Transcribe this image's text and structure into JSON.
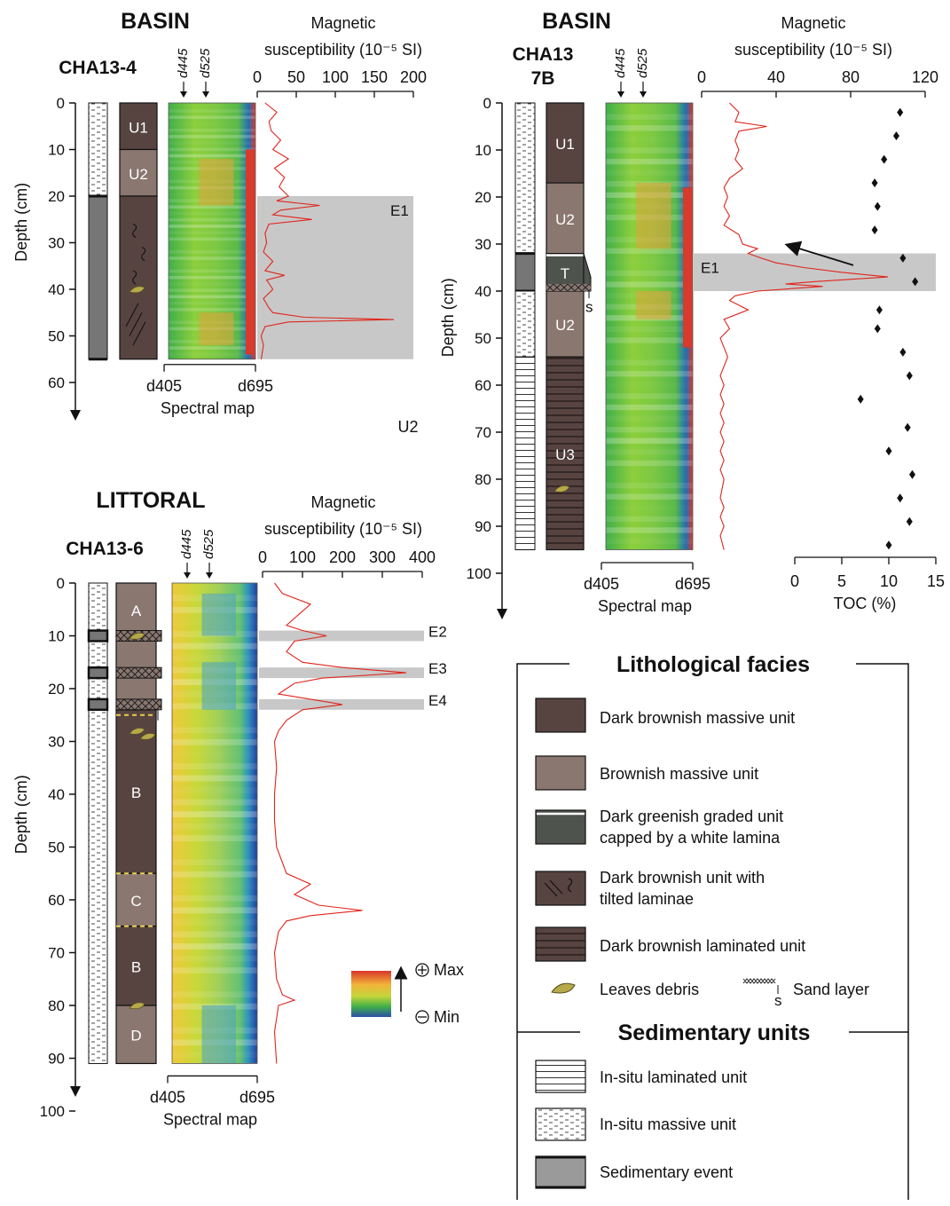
{
  "cores": [
    {
      "id": "cha13-4",
      "environment": "BASIN",
      "name": [
        "CHA13-4"
      ],
      "depth_label": "Depth (cm)",
      "depth_ticks": [
        0,
        10,
        20,
        30,
        40,
        50,
        60
      ],
      "core_length_cm": 55,
      "units": [
        {
          "label": "U1",
          "top": 0,
          "bottom": 10,
          "facies": "dark-massive"
        },
        {
          "label": "U2",
          "top": 10,
          "bottom": 20,
          "facies": "brownish-massive"
        },
        {
          "label": "",
          "top": 20,
          "bottom": 55,
          "facies": "tilted"
        }
      ],
      "sed_units": [
        {
          "top": 0,
          "bottom": 20,
          "type": "massive"
        },
        {
          "top": 20,
          "bottom": 55,
          "type": "event"
        }
      ],
      "wavelength_labels": [
        "d445",
        "d525"
      ],
      "spectral_axis": [
        "d405",
        "d695"
      ],
      "spectral_label": "Spectral map",
      "ms_title": [
        "Magnetic",
        "susceptibility (10⁻⁵ SI)"
      ],
      "ms_ticks": [
        0,
        50,
        100,
        150,
        200
      ],
      "ms_max": 200,
      "events": [
        {
          "label": "E1",
          "top": 20,
          "bottom": 55
        }
      ],
      "stray_label": "U2",
      "ms_profile": [
        [
          0,
          10
        ],
        [
          2,
          25
        ],
        [
          4,
          15
        ],
        [
          6,
          18
        ],
        [
          8,
          30
        ],
        [
          10,
          20
        ],
        [
          12,
          40
        ],
        [
          14,
          22
        ],
        [
          16,
          35
        ],
        [
          18,
          28
        ],
        [
          20,
          40
        ],
        [
          21,
          25
        ],
        [
          22,
          80
        ],
        [
          23,
          30
        ],
        [
          24,
          20
        ],
        [
          25,
          70
        ],
        [
          26,
          15
        ],
        [
          28,
          10
        ],
        [
          30,
          12
        ],
        [
          32,
          8
        ],
        [
          34,
          20
        ],
        [
          36,
          10
        ],
        [
          37,
          35
        ],
        [
          38,
          12
        ],
        [
          40,
          20
        ],
        [
          42,
          8
        ],
        [
          44,
          15
        ],
        [
          45,
          20
        ],
        [
          46,
          60
        ],
        [
          46.5,
          175
        ],
        [
          47,
          40
        ],
        [
          48,
          10
        ],
        [
          50,
          5
        ],
        [
          52,
          8
        ],
        [
          55,
          5
        ]
      ]
    },
    {
      "id": "cha13-7b",
      "environment": "BASIN",
      "name": [
        "CHA13",
        "7B"
      ],
      "depth_label": "Depth (cm)",
      "depth_ticks": [
        0,
        10,
        20,
        30,
        40,
        50,
        60,
        70,
        80,
        90,
        100
      ],
      "core_length_cm": 95,
      "units": [
        {
          "label": "U1",
          "top": 0,
          "bottom": 17,
          "facies": "dark-massive"
        },
        {
          "label": "U2",
          "top": 17,
          "bottom": 32,
          "facies": "brownish-massive"
        },
        {
          "label": "T",
          "top": 32,
          "bottom": 40,
          "facies": "graded"
        },
        {
          "label": "U2",
          "top": 40,
          "bottom": 54,
          "facies": "brownish-massive"
        },
        {
          "label": "U3",
          "top": 54,
          "bottom": 95,
          "facies": "laminated"
        }
      ],
      "sed_units": [
        {
          "top": 0,
          "bottom": 32,
          "type": "massive"
        },
        {
          "top": 32,
          "bottom": 40,
          "type": "event"
        },
        {
          "top": 40,
          "bottom": 54,
          "type": "massive"
        },
        {
          "top": 54,
          "bottom": 95,
          "type": "laminated"
        }
      ],
      "wavelength_labels": [
        "d445",
        "d525"
      ],
      "spectral_axis": [
        "d405",
        "d695"
      ],
      "spectral_label": "Spectral map",
      "ms_title": [
        "Magnetic",
        "susceptibility (10⁻⁵ SI)"
      ],
      "ms_ticks": [
        0,
        40,
        80,
        120
      ],
      "ms_max": 120,
      "events": [
        {
          "label": "E1",
          "top": 32,
          "bottom": 40
        }
      ],
      "toc_axis": {
        "label": "TOC (%)",
        "ticks": [
          0,
          5,
          10,
          15
        ],
        "max": 15
      },
      "toc_points": [
        [
          2,
          11.2
        ],
        [
          7,
          10.8
        ],
        [
          12,
          9.5
        ],
        [
          17,
          8.5
        ],
        [
          22,
          8.8
        ],
        [
          27,
          8.5
        ],
        [
          33,
          11.5
        ],
        [
          38,
          12.8
        ],
        [
          44,
          9
        ],
        [
          48,
          8.8
        ],
        [
          53,
          11.5
        ],
        [
          58,
          12.2
        ],
        [
          63,
          7
        ],
        [
          69,
          12
        ],
        [
          74,
          10
        ],
        [
          79,
          12.5
        ],
        [
          84,
          11.2
        ],
        [
          89,
          12.2
        ],
        [
          94,
          10
        ]
      ],
      "ms_profile": [
        [
          0,
          15
        ],
        [
          2,
          20
        ],
        [
          4,
          18
        ],
        [
          5,
          35
        ],
        [
          6,
          20
        ],
        [
          8,
          18
        ],
        [
          10,
          20
        ],
        [
          12,
          18
        ],
        [
          14,
          22
        ],
        [
          16,
          15
        ],
        [
          18,
          12
        ],
        [
          20,
          14
        ],
        [
          22,
          12
        ],
        [
          24,
          15
        ],
        [
          26,
          12
        ],
        [
          28,
          20
        ],
        [
          30,
          22
        ],
        [
          31,
          30
        ],
        [
          32,
          25
        ],
        [
          33,
          32
        ],
        [
          34,
          40
        ],
        [
          35,
          55
        ],
        [
          36,
          75
        ],
        [
          37,
          100
        ],
        [
          38,
          60
        ],
        [
          38.5,
          45
        ],
        [
          39,
          65
        ],
        [
          40,
          30
        ],
        [
          41,
          18
        ],
        [
          42,
          15
        ],
        [
          44,
          25
        ],
        [
          46,
          12
        ],
        [
          48,
          15
        ],
        [
          50,
          10
        ],
        [
          52,
          12
        ],
        [
          54,
          14
        ],
        [
          56,
          12
        ],
        [
          58,
          10
        ],
        [
          60,
          12
        ],
        [
          62,
          10
        ],
        [
          64,
          12
        ],
        [
          66,
          10
        ],
        [
          68,
          12
        ],
        [
          70,
          10
        ],
        [
          72,
          12
        ],
        [
          74,
          10
        ],
        [
          76,
          12
        ],
        [
          78,
          10
        ],
        [
          80,
          12
        ],
        [
          82,
          11
        ],
        [
          84,
          10
        ],
        [
          86,
          12
        ],
        [
          88,
          10
        ],
        [
          90,
          12
        ],
        [
          92,
          10
        ],
        [
          95,
          12
        ]
      ]
    },
    {
      "id": "cha13-6",
      "environment": "LITTORAL",
      "name": [
        "CHA13-6"
      ],
      "depth_label": "Depth (cm)",
      "depth_ticks": [
        0,
        10,
        20,
        30,
        40,
        50,
        60,
        70,
        80,
        90,
        100
      ],
      "core_length_cm": 91,
      "units": [
        {
          "label": "A",
          "top": 0,
          "bottom": 10,
          "facies": "brownish-massive"
        },
        {
          "label": "",
          "top": 10,
          "bottom": 24,
          "facies": "brownish-massive"
        },
        {
          "label": "B",
          "top": 24,
          "bottom": 55,
          "facies": "dark-massive"
        },
        {
          "label": "C",
          "top": 55,
          "bottom": 65,
          "facies": "brownish-massive"
        },
        {
          "label": "B",
          "top": 65,
          "bottom": 80,
          "facies": "dark-massive"
        },
        {
          "label": "D",
          "top": 80,
          "bottom": 91,
          "facies": "brownish-massive"
        }
      ],
      "sed_units": [
        {
          "top": 0,
          "bottom": 91,
          "type": "massive"
        }
      ],
      "wavelength_labels": [
        "d445",
        "d525"
      ],
      "spectral_axis": [
        "d405",
        "d695"
      ],
      "spectral_label": "Spectral map",
      "ms_title": [
        "Magnetic",
        "susceptibility (10⁻⁵ SI)"
      ],
      "ms_ticks": [
        0,
        100,
        200,
        300,
        400
      ],
      "ms_max": 400,
      "events": [
        {
          "label": "E2",
          "top": 9,
          "bottom": 11
        },
        {
          "label": "E3",
          "top": 16,
          "bottom": 18
        },
        {
          "label": "E4",
          "top": 22,
          "bottom": 24
        }
      ],
      "ms_profile": [
        [
          0,
          30
        ],
        [
          2,
          50
        ],
        [
          4,
          120
        ],
        [
          6,
          90
        ],
        [
          8,
          60
        ],
        [
          9,
          100
        ],
        [
          10,
          160
        ],
        [
          11,
          80
        ],
        [
          13,
          60
        ],
        [
          15,
          100
        ],
        [
          16,
          200
        ],
        [
          17,
          360
        ],
        [
          18,
          150
        ],
        [
          19,
          80
        ],
        [
          20,
          60
        ],
        [
          21,
          40
        ],
        [
          22,
          120
        ],
        [
          23,
          200
        ],
        [
          24,
          100
        ],
        [
          26,
          60
        ],
        [
          28,
          40
        ],
        [
          30,
          30
        ],
        [
          35,
          35
        ],
        [
          40,
          30
        ],
        [
          45,
          30
        ],
        [
          50,
          35
        ],
        [
          55,
          60
        ],
        [
          57,
          120
        ],
        [
          59,
          80
        ],
        [
          61,
          140
        ],
        [
          62,
          250
        ],
        [
          63,
          120
        ],
        [
          64,
          60
        ],
        [
          66,
          40
        ],
        [
          70,
          30
        ],
        [
          75,
          35
        ],
        [
          78,
          50
        ],
        [
          79,
          80
        ],
        [
          80,
          40
        ],
        [
          85,
          30
        ],
        [
          91,
          35
        ]
      ]
    }
  ],
  "colormap": {
    "max_label": "Max",
    "min_label": "Min"
  },
  "legend": {
    "facies_title": "Lithological facies",
    "facies": [
      {
        "key": "dark-massive",
        "lines": [
          "Dark brownish massive unit"
        ]
      },
      {
        "key": "brownish-massive",
        "lines": [
          "Brownish massive unit"
        ]
      },
      {
        "key": "graded",
        "lines": [
          "Dark greenish graded unit",
          "capped by a white lamina"
        ]
      },
      {
        "key": "tilted",
        "lines": [
          "Dark brownish unit with",
          "tilted laminae"
        ]
      },
      {
        "key": "laminated",
        "lines": [
          "Dark brownish laminated unit"
        ]
      }
    ],
    "leaves_label": "Leaves debris",
    "sand_label": "Sand layer",
    "sand_marker": "s",
    "sed_title": "Sedimentary units",
    "sed_items": [
      {
        "key": "laminated",
        "label": "In-situ laminated unit"
      },
      {
        "key": "massive",
        "label": "In-situ massive unit"
      },
      {
        "key": "event",
        "label": "Sedimentary event"
      }
    ]
  },
  "colors": {
    "dark_massive": "#574441",
    "brownish": "#8a7770",
    "graded": "#4f534d",
    "event_band": "#c8c8c8",
    "event_col": "#767676",
    "ms_line": "#e0251b"
  }
}
